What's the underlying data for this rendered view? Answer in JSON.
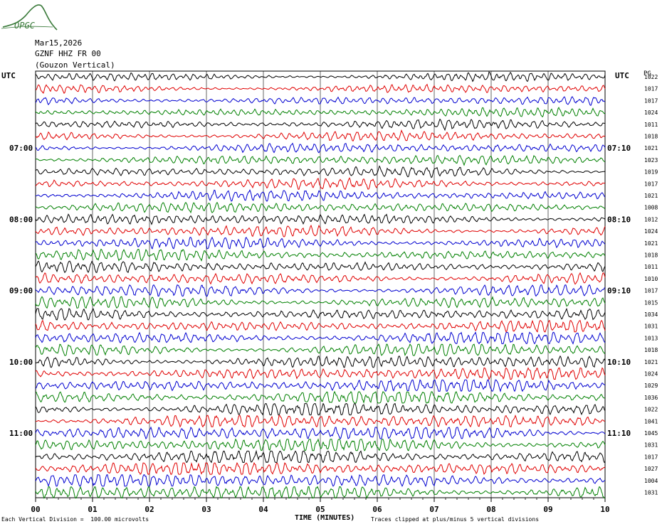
{
  "logo": {
    "text": "OPGC",
    "color": "#3a7a3a"
  },
  "header": {
    "date": "Mar15,2026",
    "station": "GZNF HHZ FR 00",
    "name": "(Gouzon Vertical)"
  },
  "left_axis_label": "UTC",
  "right_axis_label": "UTC",
  "right_column_label": "PG",
  "footer": {
    "scale_note": "Each Vertical Division =  100.00 microvolts",
    "xlabel": "TIME (MINUTES)",
    "clip_note": "Traces clipped at plus/minus 5 vertical divisions"
  },
  "chart_data": {
    "type": "line",
    "title": "",
    "xlabel": "TIME (MINUTES)",
    "x_ticks": [
      "00",
      "01",
      "02",
      "03",
      "04",
      "05",
      "06",
      "07",
      "08",
      "09",
      "10"
    ],
    "xlim": [
      0,
      10
    ],
    "trace_colors": [
      "#000000",
      "#e00000",
      "#0000d0",
      "#008000"
    ],
    "left_hour_labels": [
      "07:00",
      "08:00",
      "09:00",
      "10:00",
      "11:00"
    ],
    "right_hour_labels": [
      "07:10",
      "08:10",
      "09:10",
      "10:10",
      "11:10"
    ],
    "trace_values": [
      1022,
      1017,
      1017,
      1024,
      1011,
      1018,
      1021,
      1023,
      1019,
      1017,
      1021,
      1008,
      1012,
      1024,
      1021,
      1018,
      1011,
      1010,
      1017,
      1015,
      1034,
      1031,
      1013,
      1018,
      1021,
      1024,
      1029,
      1036,
      1022,
      1041,
      1045,
      1031,
      1017,
      1027,
      1004,
      1031
    ]
  }
}
